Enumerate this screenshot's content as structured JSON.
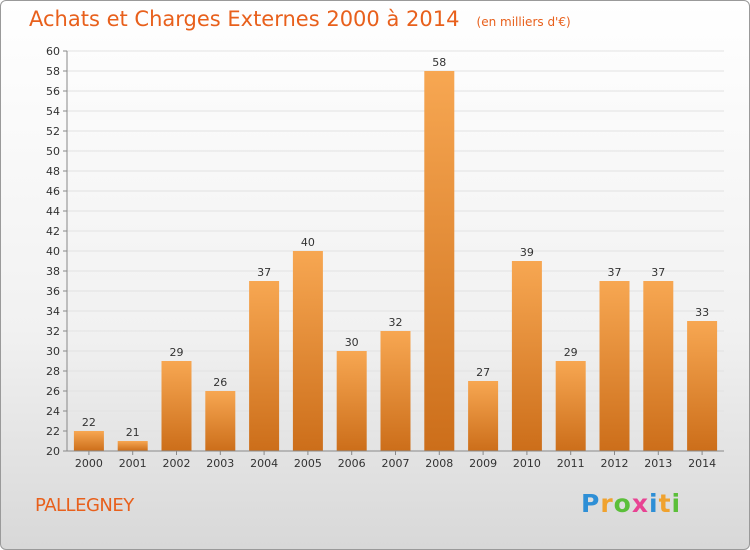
{
  "header": {
    "title": "Achats et Charges Externes 2000 à 2014",
    "unit": "(en milliers d'€)"
  },
  "footer": {
    "commune": "PALLEGNEY",
    "logo": "Proxiti",
    "logo_letters": [
      "P",
      "r",
      "o",
      "x",
      "i",
      "t",
      "i"
    ]
  },
  "colors": {
    "title": "#e8601c",
    "bar_light": "#f7a752",
    "bar_dark": "#cc6e1a",
    "grid": "#e2e2e2",
    "axis": "#888888"
  },
  "chart_data": {
    "type": "bar",
    "categories": [
      "2000",
      "2001",
      "2002",
      "2003",
      "2004",
      "2005",
      "2006",
      "2007",
      "2008",
      "2009",
      "2010",
      "2011",
      "2012",
      "2013",
      "2014"
    ],
    "values": [
      22,
      21,
      29,
      26,
      37,
      40,
      30,
      32,
      58,
      27,
      39,
      29,
      37,
      37,
      33
    ],
    "ylim": [
      20,
      60
    ],
    "ytick_step": 2,
    "grid": true,
    "data_labels": true
  }
}
